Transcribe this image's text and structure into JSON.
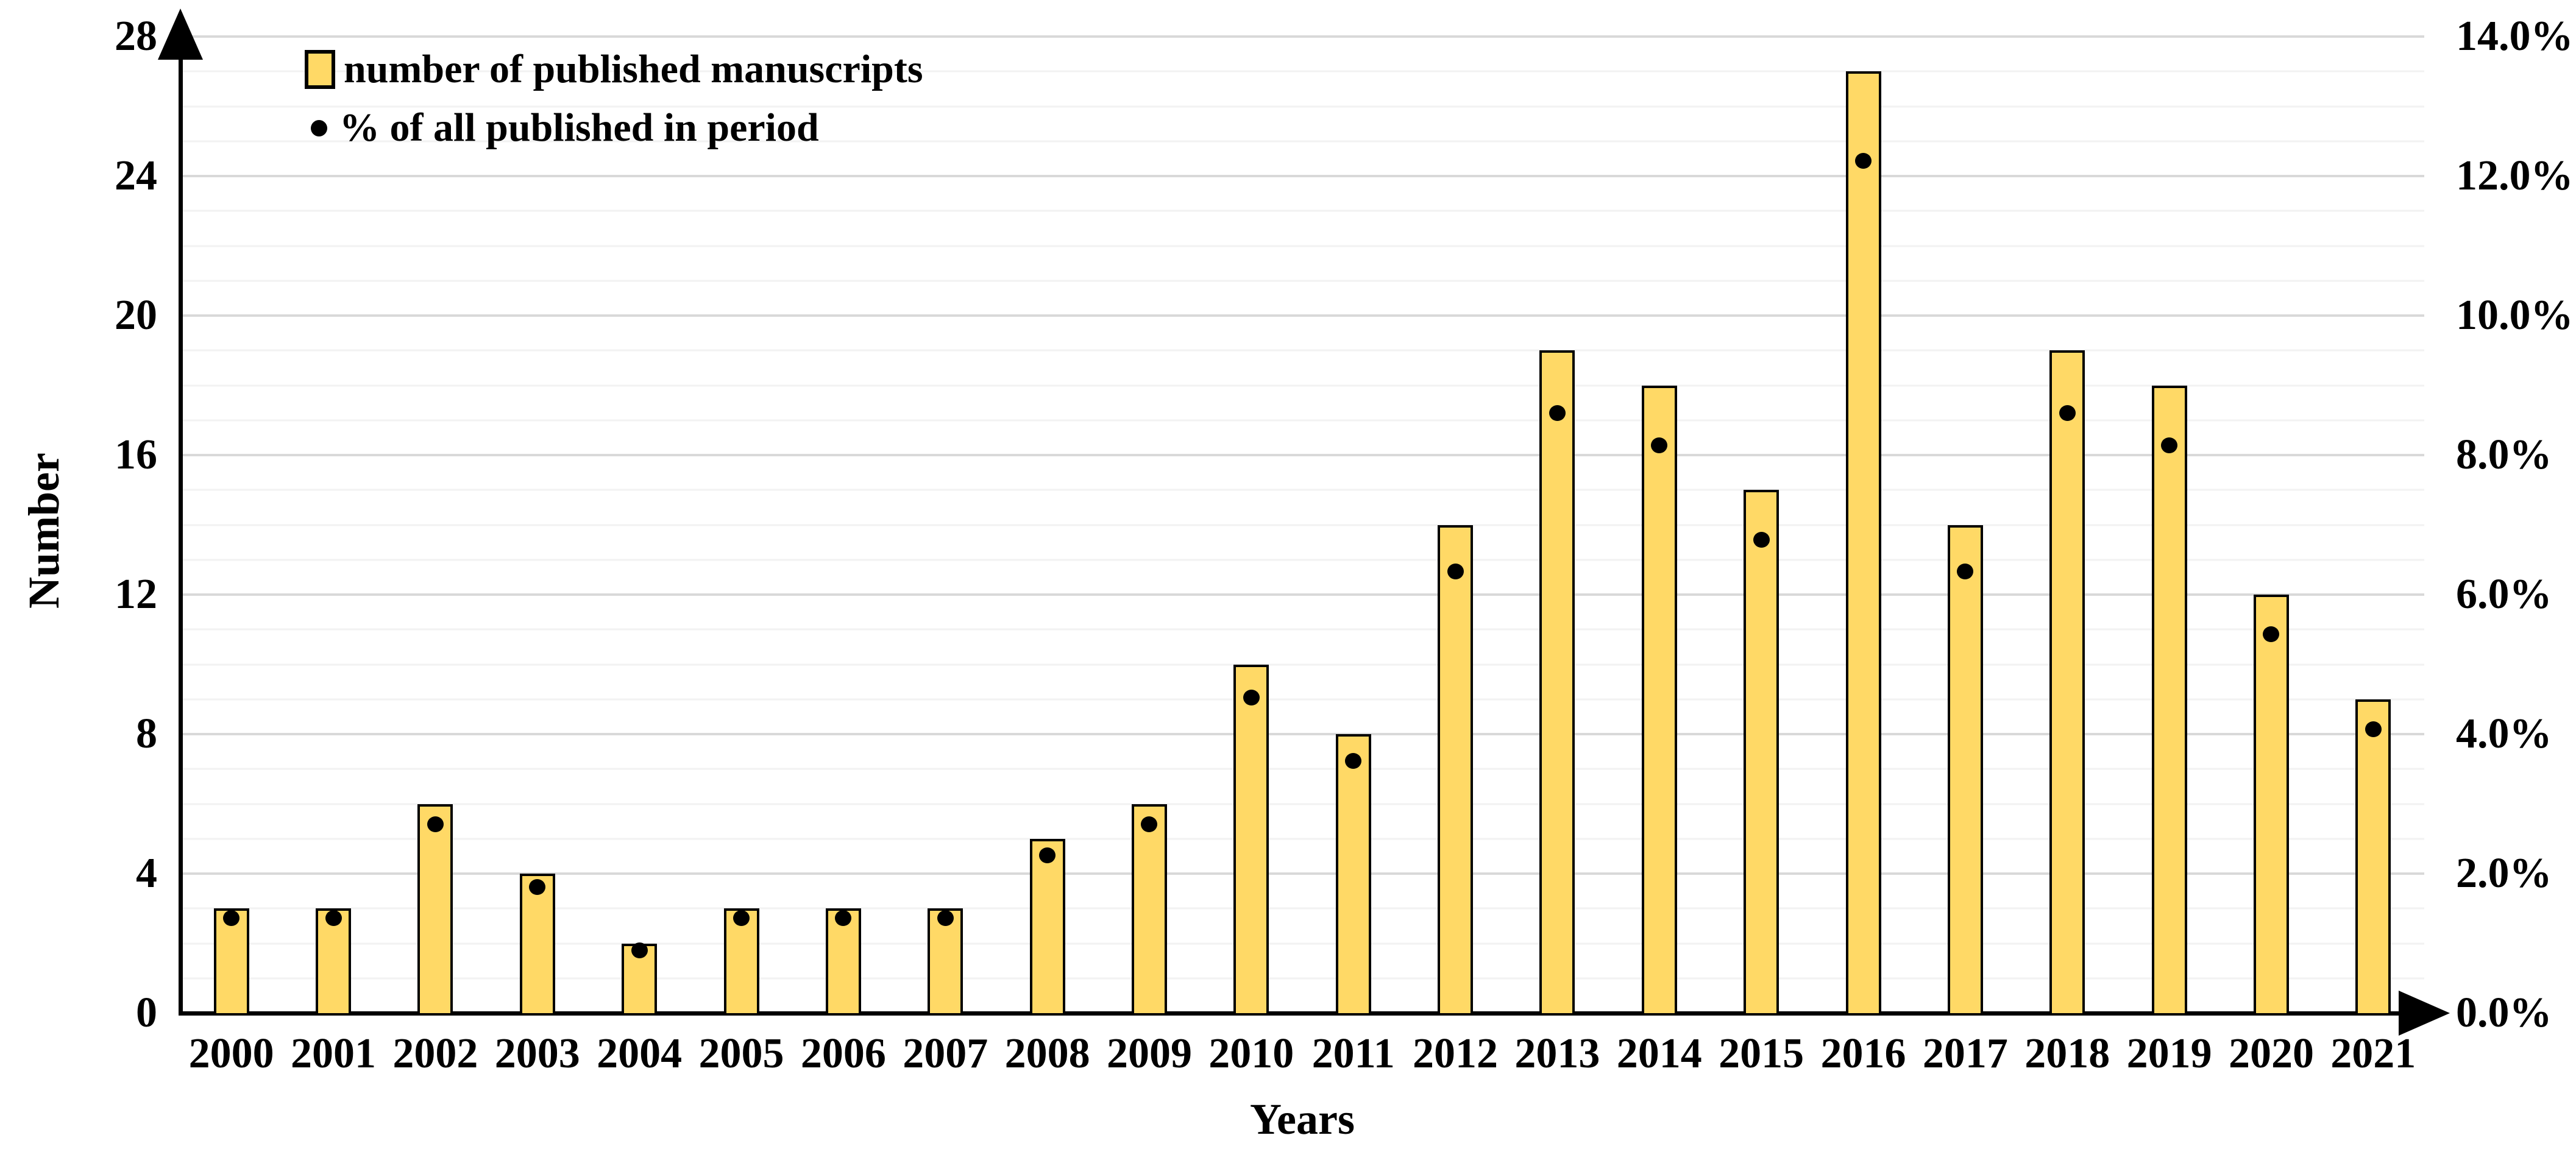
{
  "chart_data": {
    "type": "bar",
    "title": "",
    "categories": [
      "2000",
      "2001",
      "2002",
      "2003",
      "2004",
      "2005",
      "2006",
      "2007",
      "2008",
      "2009",
      "2010",
      "2011",
      "2012",
      "2013",
      "2014",
      "2015",
      "2016",
      "2017",
      "2018",
      "2019",
      "2020",
      "2021"
    ],
    "series": [
      {
        "name": "number of published manuscripts",
        "type": "bar",
        "axis": "left",
        "color": "#FFD966",
        "border_color": "#000000",
        "values": [
          3,
          3,
          6,
          4,
          2,
          3,
          3,
          3,
          5,
          6,
          10,
          8,
          14,
          19,
          18,
          15,
          27,
          14,
          19,
          18,
          12,
          9
        ]
      },
      {
        "name": "% of all published in period",
        "type": "scatter",
        "axis": "right",
        "color": "#000000",
        "values": [
          1.36,
          1.36,
          2.71,
          1.81,
          0.9,
          1.36,
          1.36,
          1.36,
          2.26,
          2.71,
          4.52,
          3.62,
          6.33,
          8.6,
          8.14,
          6.79,
          12.22,
          6.33,
          8.6,
          8.14,
          5.43,
          4.07
        ]
      }
    ],
    "xlabel": "Years",
    "left_axis": {
      "label": "Number",
      "min": 0,
      "max": 28,
      "ticks": [
        0,
        4,
        8,
        12,
        16,
        20,
        24,
        28
      ]
    },
    "right_axis": {
      "label": "",
      "min": 0,
      "max": 14,
      "ticks": [
        "0.0%",
        "2.0%",
        "4.0%",
        "6.0%",
        "8.0%",
        "10.0%",
        "12.0%",
        "14.0%"
      ]
    },
    "grid": {
      "on": true,
      "minor_step_left_units": 1,
      "major_step_left_units": 4,
      "minor_color": "#F2F2F2",
      "major_color": "#D9D9D9"
    },
    "legend_position": "inside-top-left"
  }
}
